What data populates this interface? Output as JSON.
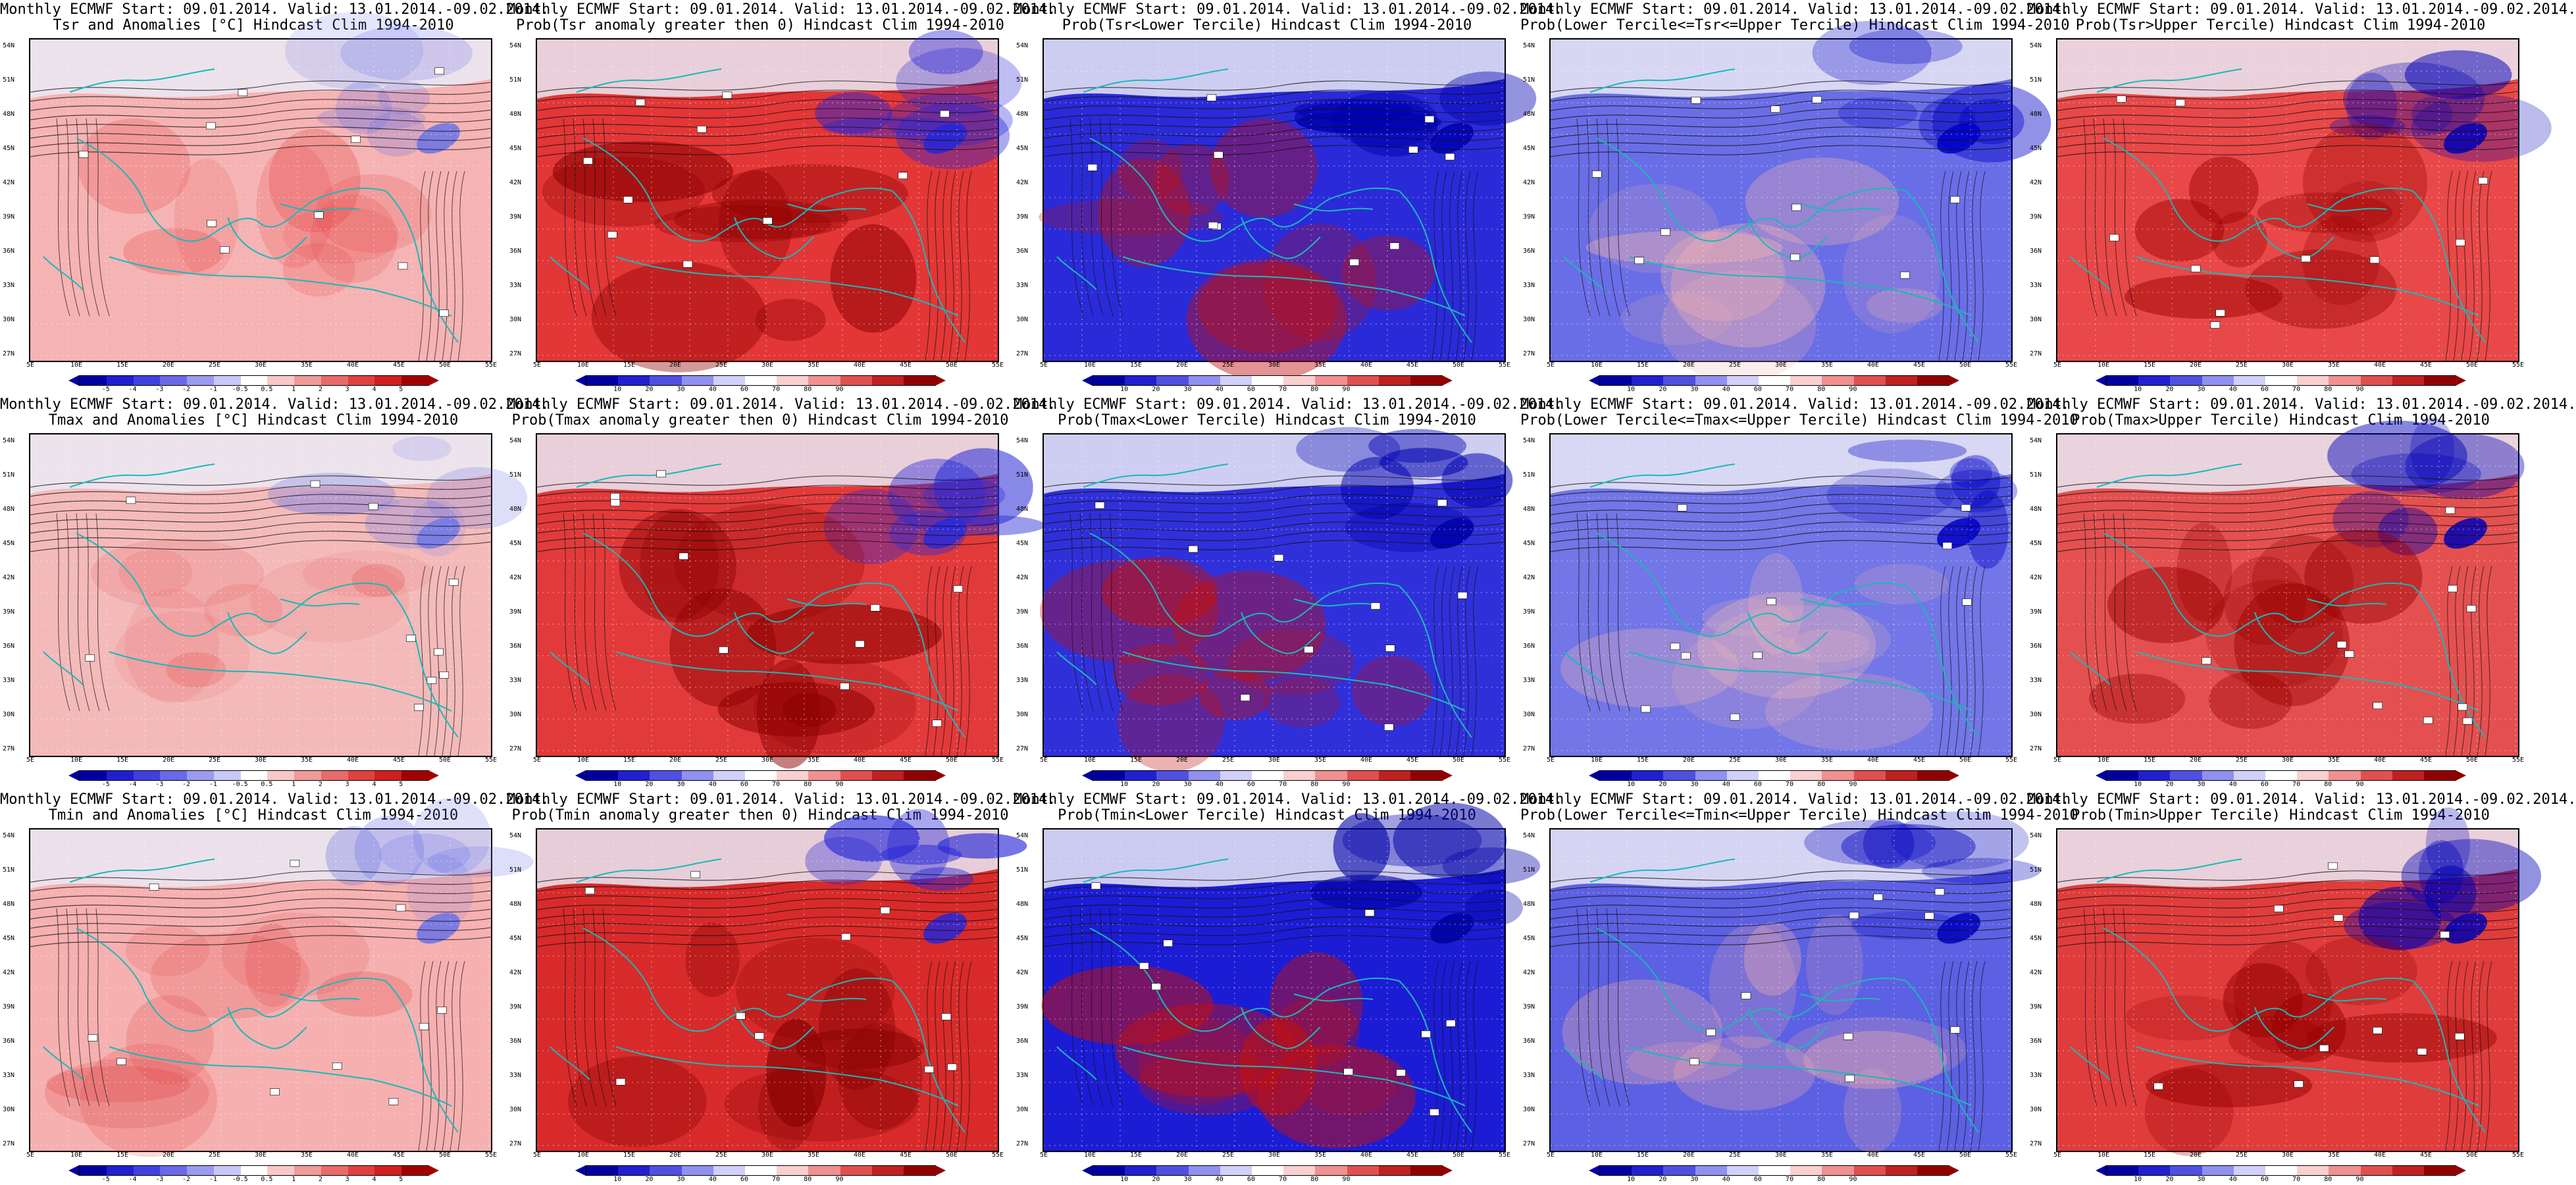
{
  "panels": [
    {
      "title1": "Monthly ECMWF Start: 09.01.2014. Valid: 13.01.2014.-09.02.2014.",
      "title2": "Tsr and Anomalies [°C] Hindcast Clim 1994-2010",
      "kind": "anom",
      "base": "#f6b3b3",
      "hot": "#e64545",
      "cold": "#6a72e8",
      "intensity": 0.45
    },
    {
      "title1": "Monthly ECMWF Start: 09.01.2014. Valid: 13.01.2014.-09.02.2014.",
      "title2": "Prob(Tsr anomaly greater then 0) Hindcast Clim 1994-2010",
      "kind": "prob",
      "base": "#e33636",
      "hot": "#8c0000",
      "cold": "#2626d8",
      "intensity": 0.8
    },
    {
      "title1": "Monthly ECMWF Start: 09.01.2014. Valid: 13.01.2014.-09.02.2014.",
      "title2": "Prob(Tsr<Lower Tercile) Hindcast Clim 1994-2010",
      "kind": "prob",
      "base": "#2a2ad8",
      "hot": "#c01010",
      "cold": "#0000b0",
      "intensity": 0.85
    },
    {
      "title1": "Monthly ECMWF Start: 09.01.2014. Valid: 13.01.2014.-09.02.2014.",
      "title2": "Prob(Lower Tercile<=Tsr<=Upper Tercile) Hindcast Clim 1994-2010",
      "kind": "prob",
      "base": "#6a6ee6",
      "hot": "#f0b0b0",
      "cold": "#0000c8",
      "intensity": 0.6
    },
    {
      "title1": "Monthly ECMWF Start: 09.01.2014. Valid: 13.01.2014.-09.02.2014.",
      "title2": "Prob(Tsr>Upper Tercile) Hindcast Clim 1994-2010",
      "kind": "prob",
      "base": "#e84848",
      "hot": "#9a0000",
      "cold": "#0000b8",
      "intensity": 0.7
    },
    {
      "title1": "Monthly ECMWF Start: 09.01.2014. Valid: 13.01.2014.-09.02.2014.",
      "title2": "Tmax and Anomalies [°C] Hindcast Clim 1994-2010",
      "kind": "anom",
      "base": "#f4baba",
      "hot": "#e65050",
      "cold": "#7078e8",
      "intensity": 0.4
    },
    {
      "title1": "Monthly ECMWF Start: 09.01.2014. Valid: 13.01.2014.-09.02.2014.",
      "title2": "Prob(Tmax anomaly greater then 0) Hindcast Clim 1994-2010",
      "kind": "prob",
      "base": "#e23a3a",
      "hot": "#8c0000",
      "cold": "#2a2ad8",
      "intensity": 0.8
    },
    {
      "title1": "Monthly ECMWF Start: 09.01.2014. Valid: 13.01.2014.-09.02.2014.",
      "title2": "Prob(Tmax<Lower Tercile) Hindcast Clim 1994-2010",
      "kind": "prob",
      "base": "#3030da",
      "hot": "#c01010",
      "cold": "#0000b0",
      "intensity": 0.8
    },
    {
      "title1": "Monthly ECMWF Start: 09.01.2014. Valid: 13.01.2014.-09.02.2014.",
      "title2": "Prob(Lower Tercile<=Tmax<=Upper Tercile) Hindcast Clim 1994-2010",
      "kind": "prob",
      "base": "#7276e6",
      "hot": "#f2b6b6",
      "cold": "#0000c8",
      "intensity": 0.55
    },
    {
      "title1": "Monthly ECMWF Start: 09.01.2014. Valid: 13.01.2014.-09.02.2014.",
      "title2": "Prob(Tmax>Upper Tercile) Hindcast Clim 1994-2010",
      "kind": "prob",
      "base": "#e45050",
      "hot": "#9a0000",
      "cold": "#0000b8",
      "intensity": 0.7
    },
    {
      "title1": "Monthly ECMWF Start: 09.01.2014. Valid: 13.01.2014.-09.02.2014.",
      "title2": "Tmin and Anomalies [°C] Hindcast Clim 1994-2010",
      "kind": "anom",
      "base": "#f6b0b0",
      "hot": "#e04848",
      "cold": "#6a72e8",
      "intensity": 0.45
    },
    {
      "title1": "Monthly ECMWF Start: 09.01.2014. Valid: 13.01.2014.-09.02.2014.",
      "title2": "Prob(Tmin anomaly greater then 0) Hindcast Clim 1994-2010",
      "kind": "prob",
      "base": "#d82a2a",
      "hot": "#820000",
      "cold": "#2626d8",
      "intensity": 0.85
    },
    {
      "title1": "Monthly ECMWF Start: 09.01.2014. Valid: 13.01.2014.-09.02.2014.",
      "title2": "Prob(Tmin<Lower Tercile) Hindcast Clim 1994-2010",
      "kind": "prob",
      "base": "#1c1cd4",
      "hot": "#c01010",
      "cold": "#0000a8",
      "intensity": 0.85
    },
    {
      "title1": "Monthly ECMWF Start: 09.01.2014. Valid: 13.01.2014.-09.02.2014.",
      "title2": "Prob(Lower Tercile<=Tmin<=Upper Tercile) Hindcast Clim 1994-2010",
      "kind": "prob",
      "base": "#5c60e2",
      "hot": "#eeaaaa",
      "cold": "#0000c0",
      "intensity": 0.6
    },
    {
      "title1": "Monthly ECMWF Start: 09.01.2014. Valid: 13.01.2014.-09.02.2014.",
      "title2": "Prob(Tmin>Upper Tercile) Hindcast Clim 1994-2010",
      "kind": "prob",
      "base": "#e03c3c",
      "hot": "#960000",
      "cold": "#0000b8",
      "intensity": 0.75
    }
  ],
  "latitude_labels": [
    "54N",
    "51N",
    "48N",
    "45N",
    "42N",
    "39N",
    "36N",
    "33N",
    "30N",
    "27N"
  ],
  "longitude_labels": [
    "5E",
    "10E",
    "15E",
    "20E",
    "25E",
    "30E",
    "35E",
    "40E",
    "45E",
    "50E",
    "55E"
  ],
  "anomaly_colorbar": {
    "ticks": [
      "-5",
      "-4",
      "-3",
      "-2",
      "-1",
      "-0.5",
      "0.5",
      "1",
      "2",
      "3",
      "4",
      "5"
    ],
    "colors": [
      "#0000a0",
      "#1f1fd0",
      "#4040e0",
      "#6a6ae8",
      "#9a9af0",
      "#c8c8f8",
      "#ffffff",
      "#f8c8c8",
      "#f09a9a",
      "#e86a6a",
      "#e04040",
      "#d01f1f",
      "#a00000"
    ]
  },
  "probability_colorbar": {
    "ticks": [
      "10",
      "20",
      "30",
      "40",
      "60",
      "70",
      "80",
      "90"
    ],
    "colors": [
      "#0000a0",
      "#2020d0",
      "#5050e0",
      "#9090f0",
      "#d0d0f8",
      "#ffffff",
      "#f8d0d0",
      "#f09090",
      "#e05050",
      "#c02020",
      "#900000"
    ]
  },
  "colors": {
    "coast": "#19b9b9",
    "contour": "#111111",
    "land_north": "#eaeaf6"
  }
}
